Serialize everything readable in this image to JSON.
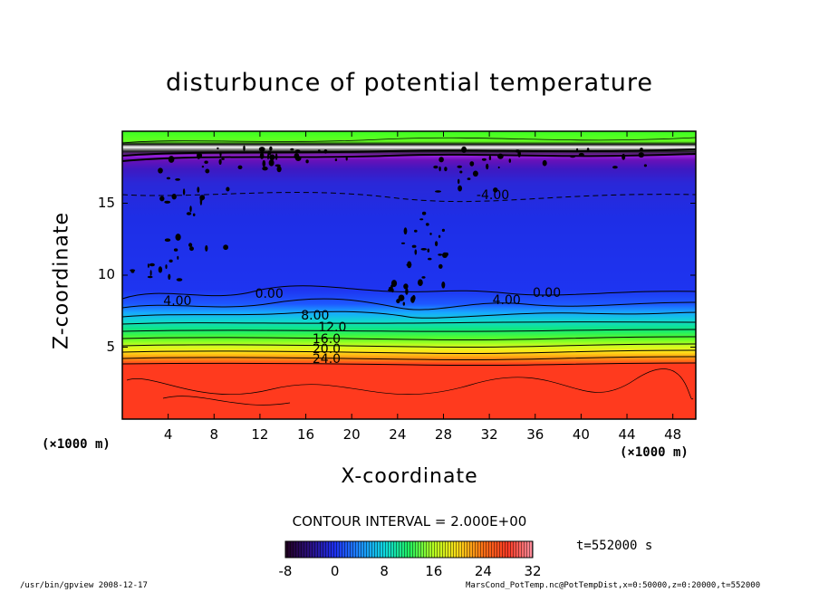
{
  "chart_data": {
    "type": "heatmap",
    "title": "disturbunce of potential temperature",
    "xlabel": "X-coordinate",
    "ylabel": "Z-coordinate",
    "x_unit": "(×1000 m)",
    "xlim": [
      0,
      50
    ],
    "ylim": [
      0,
      20
    ],
    "x_ticks": [
      "4",
      "8",
      "12",
      "16",
      "20",
      "24",
      "28",
      "32",
      "36",
      "40",
      "44",
      "48"
    ],
    "x_tick_values": [
      4,
      8,
      12,
      16,
      20,
      24,
      28,
      32,
      36,
      40,
      44,
      48
    ],
    "y_ticks": [
      "5",
      "10",
      "15"
    ],
    "y_tick_values": [
      5,
      10,
      15
    ],
    "contour_interval": "CONTOUR INTERVAL = 2.000E+00",
    "contour_labels": [
      {
        "text": "4.00",
        "x": 5,
        "z": 8.1
      },
      {
        "text": "0.00",
        "x": 13,
        "z": 8.6
      },
      {
        "text": "8.00",
        "x": 17,
        "z": 7.1
      },
      {
        "text": "12.0",
        "x": 18.5,
        "z": 6.3
      },
      {
        "text": "16.0",
        "x": 18,
        "z": 5.5
      },
      {
        "text": "20.0",
        "x": 18,
        "z": 4.8
      },
      {
        "text": "24.0",
        "x": 18,
        "z": 4.1
      },
      {
        "text": "4.00",
        "x": 33.7,
        "z": 8.2
      },
      {
        "text": "0.00",
        "x": 37.2,
        "z": 8.7
      },
      {
        "text": "-4.00",
        "x": 32.3,
        "z": 15.5
      }
    ],
    "colorbar": {
      "min": -8,
      "max": 32,
      "ticks": [
        "-8",
        "0",
        "8",
        "16",
        "24",
        "32"
      ],
      "tick_values": [
        -8,
        0,
        8,
        16,
        24,
        32
      ]
    },
    "time": "t=552000 s",
    "footer_left": "/usr/bin/gpview   2008-12-17",
    "footer_right": "MarsCond_PotTemp.nc@PotTempDist,x=0:50000,z=0:20000,t=552000"
  },
  "colors": {
    "surface_red": "#ff3a1e",
    "low_blue": "#1e2ee6",
    "top_green": "#3cff24"
  }
}
